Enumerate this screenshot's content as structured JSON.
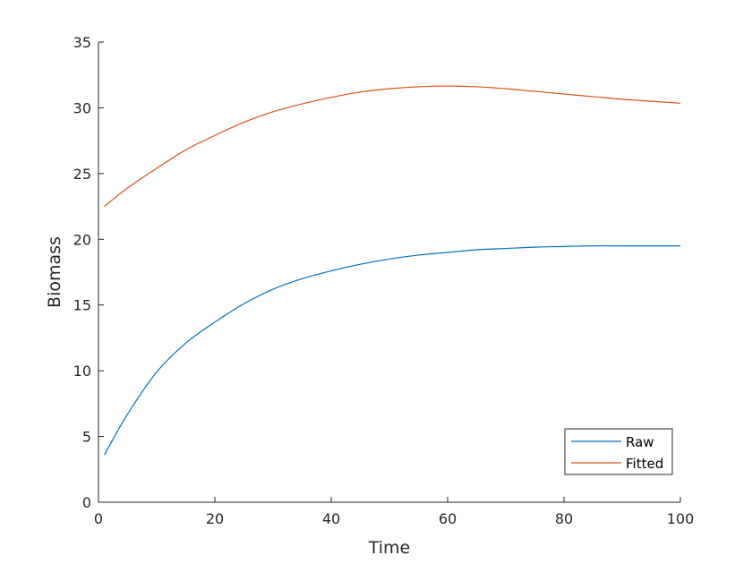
{
  "chart_data": {
    "type": "line",
    "xlabel": "Time",
    "ylabel": "Biomass",
    "xlim": [
      0,
      100
    ],
    "ylim": [
      0,
      35
    ],
    "xticks": [
      "0",
      "20",
      "40",
      "60",
      "80",
      "100"
    ],
    "yticks": [
      "0",
      "5",
      "10",
      "15",
      "20",
      "25",
      "30",
      "35"
    ],
    "grid": false,
    "legend_position": "bottom-right",
    "x": [
      1,
      5,
      10,
      15,
      20,
      25,
      30,
      35,
      40,
      45,
      50,
      55,
      60,
      65,
      70,
      75,
      80,
      85,
      90,
      95,
      100
    ],
    "series": [
      {
        "name": "Raw",
        "color": "#0072BD",
        "values": [
          3.6,
          6.7,
          9.9,
          12.1,
          13.7,
          15.1,
          16.2,
          17.0,
          17.6,
          18.1,
          18.5,
          18.8,
          19.0,
          19.2,
          19.3,
          19.4,
          19.45,
          19.5,
          19.5,
          19.5,
          19.5
        ]
      },
      {
        "name": "Fitted",
        "color": "#D95319",
        "values": [
          22.5,
          23.9,
          25.4,
          26.8,
          27.9,
          28.9,
          29.7,
          30.3,
          30.8,
          31.2,
          31.45,
          31.6,
          31.65,
          31.6,
          31.45,
          31.25,
          31.05,
          30.85,
          30.65,
          30.5,
          30.35
        ]
      }
    ]
  }
}
